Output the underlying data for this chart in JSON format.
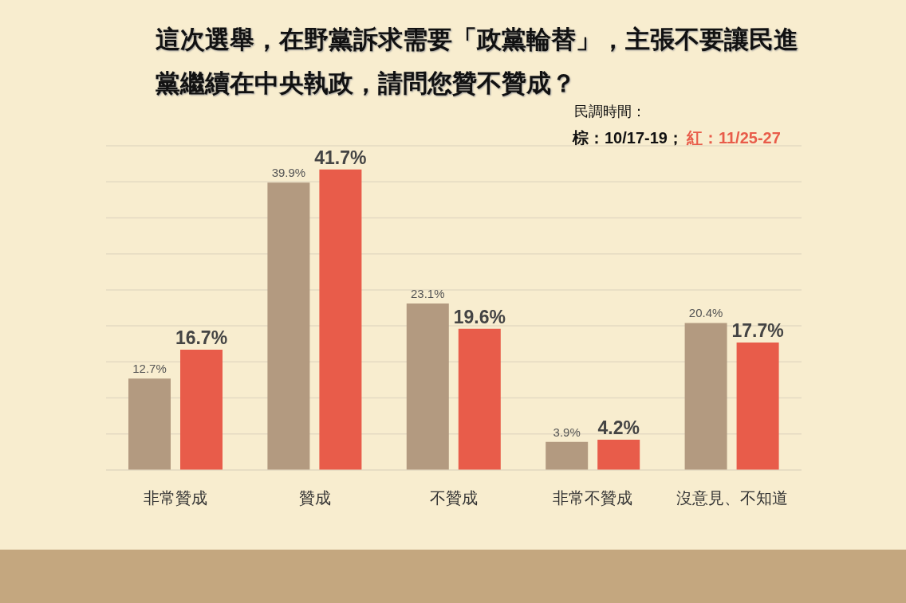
{
  "chart_data": {
    "type": "bar",
    "title": "這次選舉，在野黨訴求需要「政黨輪替」，主張不要讓民進黨繼續在中央執政，請問您贊不贊成？",
    "categories": [
      "非常贊成",
      "贊成",
      "不贊成",
      "非常不贊成",
      "沒意見、不知道"
    ],
    "series": [
      {
        "color": "#b39a80",
        "values": [
          12.7,
          39.9,
          23.1,
          3.9,
          20.4
        ],
        "value_labels": [
          "12.7%",
          "39.9%",
          "23.1%",
          "3.9%",
          "20.4%"
        ]
      },
      {
        "color": "#e85c4a",
        "values": [
          16.7,
          41.7,
          19.6,
          4.2,
          17.7
        ],
        "value_labels": [
          "16.7%",
          "41.7%",
          "19.6%",
          "4.2%",
          "17.7%"
        ]
      }
    ],
    "annotations": [
      "民調時間：",
      "棕：10/17-19；",
      "紅：11/25-27"
    ],
    "ylim": [
      0,
      45
    ],
    "grid": "y",
    "tick_labels": "x"
  }
}
